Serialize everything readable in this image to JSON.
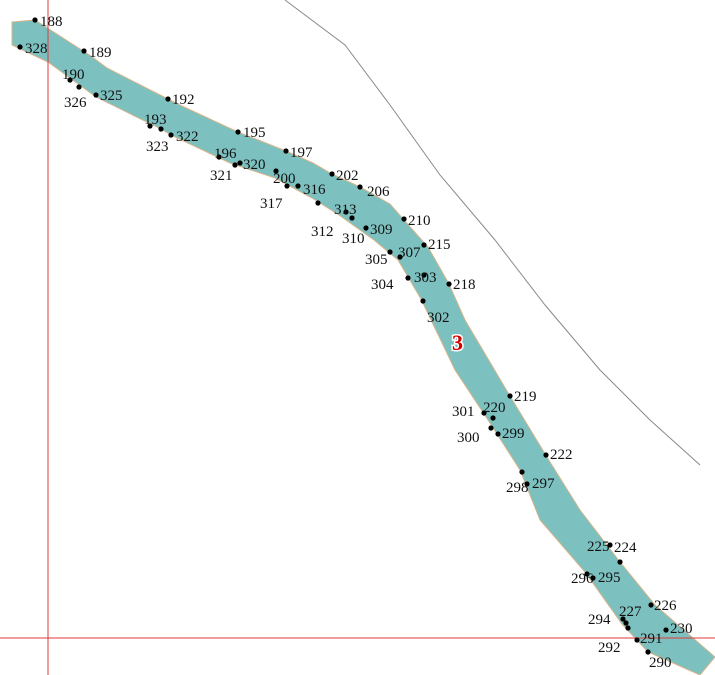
{
  "colors": {
    "parcel_fill": "#7cc0bf",
    "parcel_edge": "#d8b48a",
    "grid_line": "#e23a3a",
    "boundary_line": "#8a8a8a",
    "point": "#000000",
    "parcel_label": "#d40000"
  },
  "parcel": {
    "label": "3"
  },
  "points": [
    {
      "id": "188"
    },
    {
      "id": "328"
    },
    {
      "id": "189"
    },
    {
      "id": "190"
    },
    {
      "id": "326"
    },
    {
      "id": "325"
    },
    {
      "id": "192"
    },
    {
      "id": "193"
    },
    {
      "id": "322"
    },
    {
      "id": "323"
    },
    {
      "id": "195"
    },
    {
      "id": "196"
    },
    {
      "id": "321"
    },
    {
      "id": "320"
    },
    {
      "id": "197"
    },
    {
      "id": "200"
    },
    {
      "id": "316"
    },
    {
      "id": "317"
    },
    {
      "id": "202"
    },
    {
      "id": "313"
    },
    {
      "id": "312"
    },
    {
      "id": "206"
    },
    {
      "id": "310"
    },
    {
      "id": "309"
    },
    {
      "id": "210"
    },
    {
      "id": "305"
    },
    {
      "id": "307"
    },
    {
      "id": "215"
    },
    {
      "id": "304"
    },
    {
      "id": "303"
    },
    {
      "id": "218"
    },
    {
      "id": "302"
    },
    {
      "id": "219"
    },
    {
      "id": "301"
    },
    {
      "id": "220"
    },
    {
      "id": "300"
    },
    {
      "id": "299"
    },
    {
      "id": "222"
    },
    {
      "id": "298"
    },
    {
      "id": "297"
    },
    {
      "id": "225"
    },
    {
      "id": "224"
    },
    {
      "id": "296"
    },
    {
      "id": "295"
    },
    {
      "id": "226"
    },
    {
      "id": "294"
    },
    {
      "id": "227"
    },
    {
      "id": "230"
    },
    {
      "id": "291"
    },
    {
      "id": "292"
    },
    {
      "id": "290"
    }
  ]
}
